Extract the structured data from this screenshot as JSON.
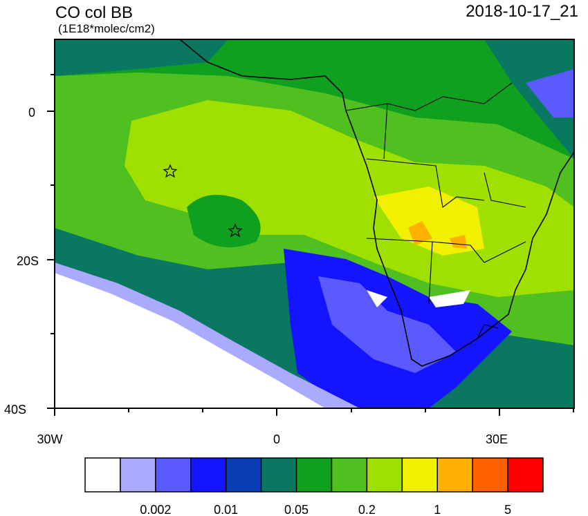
{
  "title": "CO col BB",
  "units": "(1E18*molec/cm2)",
  "timestamp": "2018-10-17_21",
  "lat_labels": [
    "0",
    "20S",
    "40S"
  ],
  "lon_labels": [
    "30W",
    "0",
    "30E"
  ],
  "colorbar": {
    "colors": [
      "#ffffff",
      "#aaaaff",
      "#5a5aff",
      "#1414ff",
      "#0a3cb4",
      "#0a7860",
      "#10a020",
      "#50c020",
      "#a0e000",
      "#f0f000",
      "#ffb000",
      "#ff6000",
      "#ff0000"
    ],
    "labels": [
      "0.002",
      "0.01",
      "0.05",
      "0.2",
      "1",
      "5"
    ]
  }
}
